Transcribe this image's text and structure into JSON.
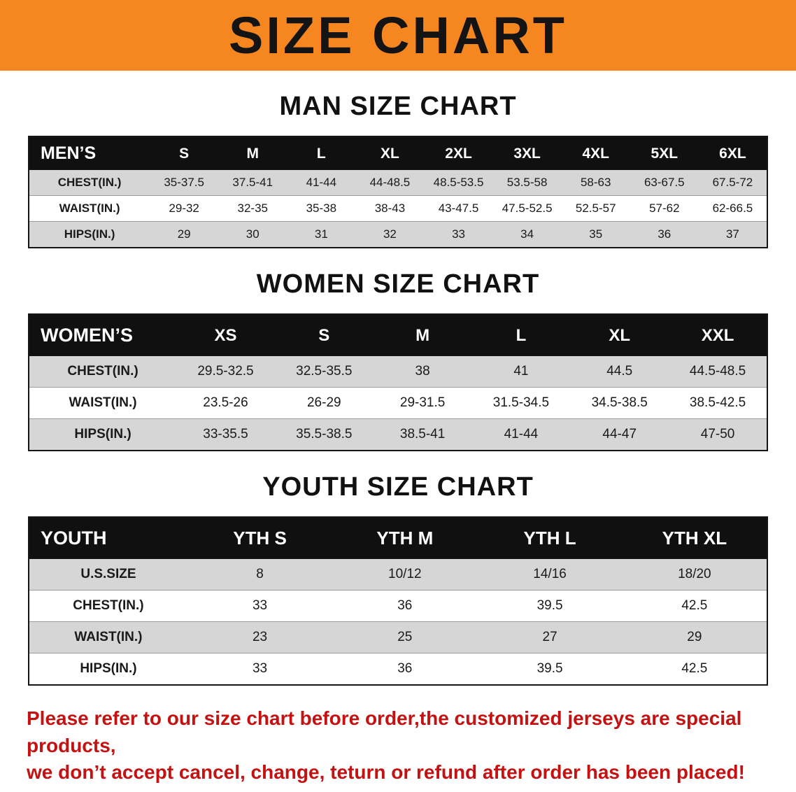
{
  "banner": {
    "title": "SIZE CHART",
    "bg_color": "#f6861f",
    "text_color": "#141414"
  },
  "colors": {
    "table_header_bg": "#101010",
    "table_header_text": "#ffffff",
    "shaded_row_bg": "#d6d6d6",
    "notice_text": "#c41111"
  },
  "sections": [
    {
      "heading": "MAN SIZE CHART",
      "table": {
        "header": [
          "MEN’S",
          "S",
          "M",
          "L",
          "XL",
          "2XL",
          "3XL",
          "4XL",
          "5XL",
          "6XL"
        ],
        "rows": [
          [
            "CHEST(IN.)",
            "35-37.5",
            "37.5-41",
            "41-44",
            "44-48.5",
            "48.5-53.5",
            "53.5-58",
            "58-63",
            "63-67.5",
            "67.5-72"
          ],
          [
            "WAIST(IN.)",
            "29-32",
            "32-35",
            "35-38",
            "38-43",
            "43-47.5",
            "47.5-52.5",
            "52.5-57",
            "57-62",
            "62-66.5"
          ],
          [
            "HIPS(IN.)",
            "29",
            "30",
            "31",
            "32",
            "33",
            "34",
            "35",
            "36",
            "37"
          ]
        ],
        "shade_pattern": [
          "shaded",
          "plain",
          "shaded"
        ]
      }
    },
    {
      "heading": "WOMEN SIZE CHART",
      "table": {
        "header": [
          "WOMEN’S",
          "XS",
          "S",
          "M",
          "L",
          "XL",
          "XXL"
        ],
        "rows": [
          [
            "CHEST(IN.)",
            "29.5-32.5",
            "32.5-35.5",
            "38",
            "41",
            "44.5",
            "44.5-48.5"
          ],
          [
            "WAIST(IN.)",
            "23.5-26",
            "26-29",
            "29-31.5",
            "31.5-34.5",
            "34.5-38.5",
            "38.5-42.5"
          ],
          [
            "HIPS(IN.)",
            "33-35.5",
            "35.5-38.5",
            "38.5-41",
            "41-44",
            "44-47",
            "47-50"
          ]
        ],
        "shade_pattern": [
          "shaded",
          "plain",
          "shaded"
        ]
      }
    },
    {
      "heading": "YOUTH SIZE CHART",
      "table": {
        "header": [
          "YOUTH",
          "YTH S",
          "YTH M",
          "YTH L",
          "YTH XL"
        ],
        "rows": [
          [
            "U.S.SIZE",
            "8",
            "10/12",
            "14/16",
            "18/20"
          ],
          [
            "CHEST(IN.)",
            "33",
            "36",
            "39.5",
            "42.5"
          ],
          [
            "WAIST(IN.)",
            "23",
            "25",
            "27",
            "29"
          ],
          [
            "HIPS(IN.)",
            "33",
            "36",
            "39.5",
            "42.5"
          ]
        ],
        "shade_pattern": [
          "shaded",
          "plain",
          "shaded",
          "plain"
        ]
      }
    }
  ],
  "footer": {
    "line1": "Please refer to our size chart before order,the customized jerseys are special products,",
    "line2": "we don’t accept cancel, change, teturn or refund after order has been placed!"
  }
}
